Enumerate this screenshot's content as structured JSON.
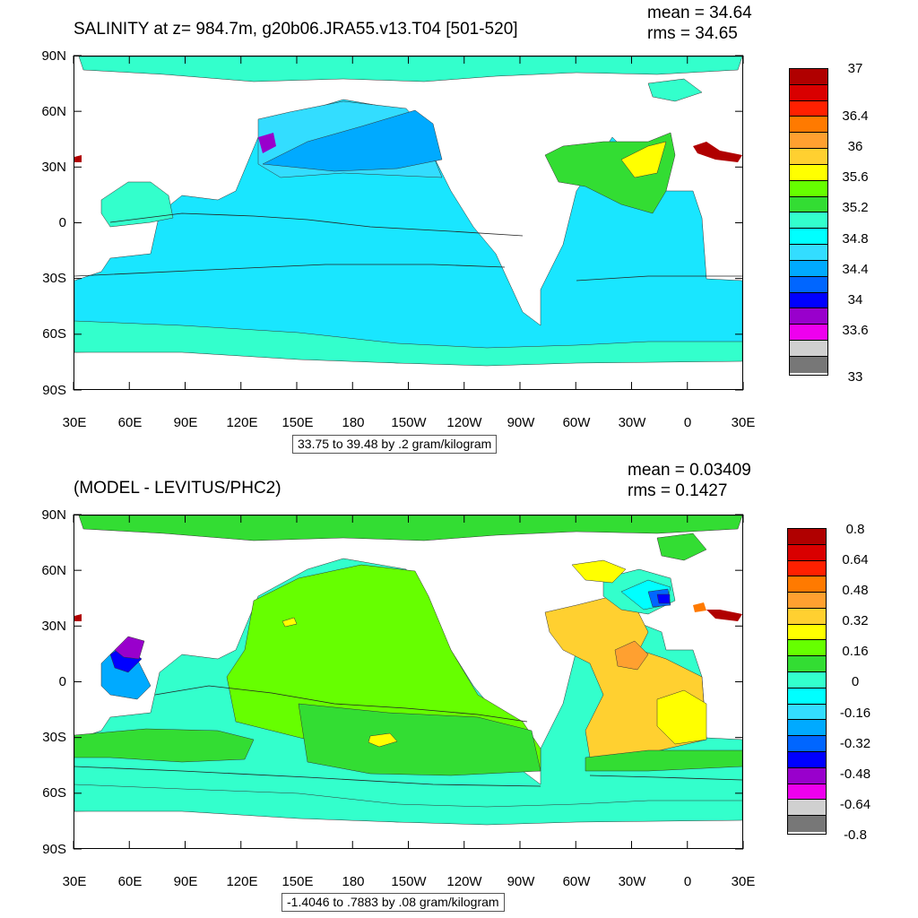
{
  "top": {
    "title": "SALINITY at z= 984.7m, g20b06.JRA55.v13.T04 [501-520]",
    "mean": "mean = 34.64",
    "rms": "rms = 34.65",
    "range_label": "33.75 to 39.48 by .2 gram/kilogram",
    "lat_labels": [
      "90N",
      "60N",
      "30N",
      "0",
      "30S",
      "60S",
      "90S"
    ],
    "lon_labels": [
      "30E",
      "60E",
      "90E",
      "120E",
      "150E",
      "180",
      "150W",
      "120W",
      "90W",
      "60W",
      "30W",
      "0",
      "30E"
    ],
    "colorbar_labels": [
      "37",
      "36.4",
      "36",
      "35.6",
      "35.2",
      "34.8",
      "34.4",
      "34",
      "33.6",
      "33"
    ],
    "colorbar_colors": [
      "#b00000",
      "#d90000",
      "#ff2000",
      "#ff7a00",
      "#ffa030",
      "#ffd030",
      "#ffff00",
      "#66ff00",
      "#33dd33",
      "#33ffcc",
      "#00ffff",
      "#33ddff",
      "#00aaff",
      "#0066ff",
      "#0000ff",
      "#9900cc",
      "#ee00ee",
      "#d0d0d0",
      "#777777"
    ]
  },
  "bottom": {
    "title": "(MODEL - LEVITUS/PHC2)",
    "mean": "mean = 0.03409",
    "rms": "rms = 0.1427",
    "range_label": "-1.4046 to .7883 by .08 gram/kilogram",
    "lat_labels": [
      "90N",
      "60N",
      "30N",
      "0",
      "30S",
      "60S",
      "90S"
    ],
    "lon_labels": [
      "30E",
      "60E",
      "90E",
      "120E",
      "150E",
      "180",
      "150W",
      "120W",
      "90W",
      "60W",
      "30W",
      "0",
      "30E"
    ],
    "colorbar_labels": [
      "0.8",
      "0.64",
      "0.48",
      "0.32",
      "0.16",
      "0",
      "-0.16",
      "-0.32",
      "-0.48",
      "-0.64",
      "-0.8"
    ],
    "colorbar_colors": [
      "#b00000",
      "#d90000",
      "#ff2000",
      "#ff7a00",
      "#ffa030",
      "#ffd030",
      "#ffff00",
      "#66ff00",
      "#33dd33",
      "#33ffcc",
      "#00ffff",
      "#33ddff",
      "#00aaff",
      "#0066ff",
      "#0000ff",
      "#9900cc",
      "#ee00ee",
      "#d0d0d0",
      "#777777"
    ]
  },
  "colors": {
    "land": "#ffffff",
    "ocean_base_top": "#19e6ff",
    "ocean_base_bottom": "#33ffcc"
  }
}
